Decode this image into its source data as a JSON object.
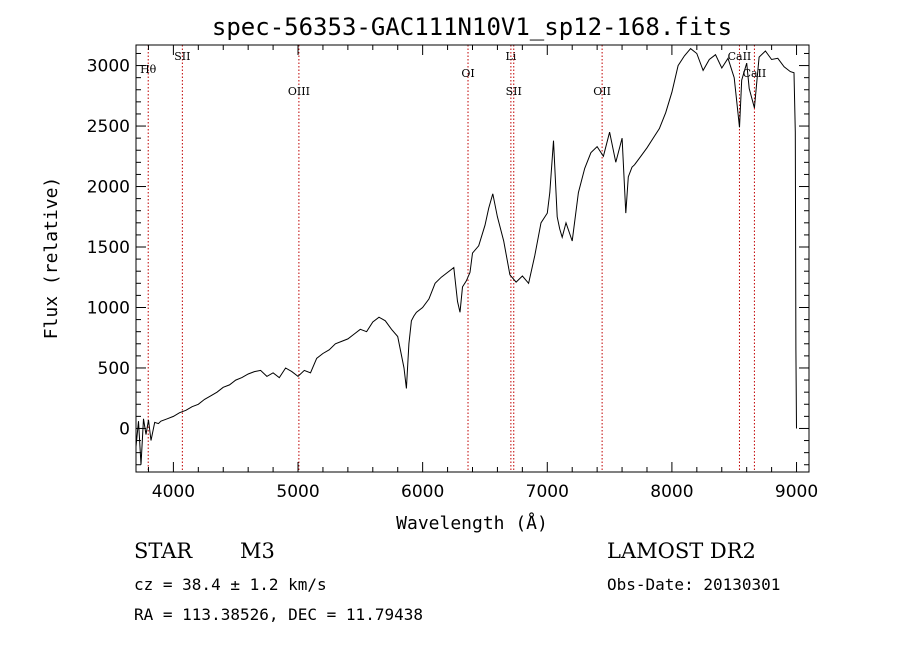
{
  "chart_data": {
    "type": "line",
    "title": "spec-56353-GAC111N10V1_sp12-168.fits",
    "xlabel": "Wavelength (Å)",
    "ylabel": "Flux (relative)",
    "xlim": [
      3700,
      9100
    ],
    "ylim": [
      -360,
      3170
    ],
    "x_ticks": [
      4000,
      5000,
      6000,
      7000,
      8000,
      9000
    ],
    "y_ticks": [
      0,
      500,
      1000,
      1500,
      2000,
      2500,
      3000
    ],
    "grid": false,
    "series": [
      {
        "x": [
          3700,
          3720,
          3740,
          3760,
          3780,
          3800,
          3820,
          3850,
          3880,
          3900,
          3950,
          4000,
          4050,
          4100,
          4150,
          4200,
          4250,
          4300,
          4350,
          4400,
          4450,
          4500,
          4550,
          4600,
          4650,
          4700,
          4750,
          4800,
          4850,
          4900,
          4950,
          5000,
          5050,
          5100,
          5150,
          5200,
          5250,
          5300,
          5350,
          5400,
          5450,
          5500,
          5550,
          5600,
          5650,
          5700,
          5750,
          5800,
          5850,
          5870,
          5890,
          5910,
          5930,
          5950,
          6000,
          6050,
          6100,
          6150,
          6200,
          6250,
          6280,
          6300,
          6320,
          6350,
          6380,
          6400,
          6450,
          6500,
          6530,
          6563,
          6600,
          6650,
          6700,
          6750,
          6800,
          6850,
          6900,
          6950,
          7000,
          7020,
          7050,
          7080,
          7100,
          7120,
          7150,
          7200,
          7250,
          7300,
          7350,
          7400,
          7450,
          7500,
          7550,
          7600,
          7630,
          7650,
          7680,
          7700,
          7750,
          7800,
          7850,
          7900,
          7950,
          8000,
          8050,
          8100,
          8150,
          8200,
          8250,
          8300,
          8350,
          8400,
          8450,
          8500,
          8542,
          8560,
          8600,
          8620,
          8662,
          8700,
          8750,
          8800,
          8850,
          8900,
          8950,
          8980,
          8990,
          8995,
          9000
        ],
        "y": [
          -150,
          60,
          -300,
          80,
          -50,
          70,
          -100,
          50,
          40,
          60,
          80,
          100,
          130,
          150,
          180,
          200,
          240,
          270,
          300,
          340,
          360,
          400,
          420,
          450,
          470,
          480,
          430,
          460,
          420,
          500,
          470,
          430,
          480,
          460,
          580,
          620,
          650,
          700,
          720,
          740,
          780,
          820,
          800,
          880,
          920,
          890,
          820,
          760,
          500,
          330,
          700,
          890,
          930,
          960,
          1000,
          1070,
          1200,
          1250,
          1290,
          1330,
          1050,
          960,
          1170,
          1220,
          1290,
          1450,
          1510,
          1680,
          1820,
          1940,
          1750,
          1550,
          1270,
          1210,
          1260,
          1200,
          1430,
          1700,
          1780,
          1950,
          2380,
          1750,
          1650,
          1580,
          1700,
          1550,
          1950,
          2150,
          2280,
          2330,
          2250,
          2450,
          2200,
          2400,
          1780,
          2080,
          2160,
          2180,
          2250,
          2320,
          2400,
          2480,
          2610,
          2780,
          3000,
          3080,
          3140,
          3100,
          2960,
          3050,
          3090,
          2980,
          3060,
          2900,
          2490,
          2880,
          3020,
          2810,
          2650,
          3070,
          3120,
          3050,
          3060,
          2990,
          2950,
          2940,
          2450,
          650,
          0
        ]
      }
    ],
    "line_markers": [
      {
        "label": "Hθ",
        "wavelength": 3798
      },
      {
        "label": "SII",
        "wavelength": 4072
      },
      {
        "label": "OIII",
        "wavelength": 5007
      },
      {
        "label": "OI",
        "wavelength": 6364
      },
      {
        "label": "Li",
        "wavelength": 6708
      },
      {
        "label": "SII",
        "wavelength": 6731
      },
      {
        "label": "OII",
        "wavelength": 7440
      },
      {
        "label": "CaII",
        "wavelength": 8542
      },
      {
        "label": "CaII",
        "wavelength": 8662
      }
    ]
  },
  "info": {
    "object_class": "STAR",
    "subclass": "M3",
    "survey": "LAMOST DR2",
    "cz": "cz = 38.4 ± 1.2 km/s",
    "obs_date": "Obs-Date: 20130301",
    "coords": "RA = 113.38526, DEC =  11.79438"
  }
}
